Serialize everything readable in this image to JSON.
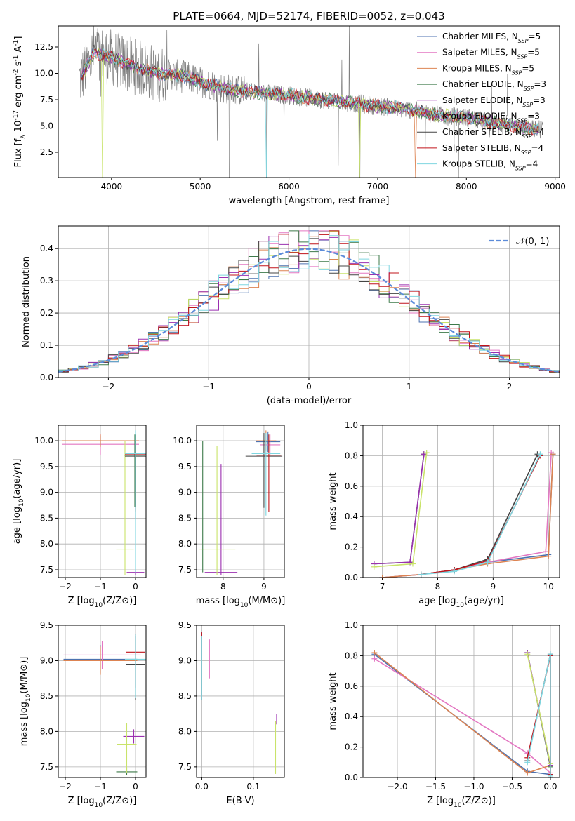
{
  "colors": {
    "chabrier_miles": "#4c72b0",
    "salpeter_miles": "#e377c2",
    "kroupa_miles": "#dd8452",
    "chabrier_elodie": "#3d7a4a",
    "salpeter_elodie": "#9b30b0",
    "kroupa_elodie": "#c9e36a",
    "chabrier_stelib": "#444444",
    "salpeter_stelib": "#c0141b",
    "kroupa_stelib": "#7fd6e0",
    "data": "#808080",
    "normal": "#5b8bd9"
  },
  "chart_data": [
    {
      "id": "spectrum",
      "type": "line",
      "title": "PLATE=0664, MJD=52174, FIBERID=0052, z=0.043",
      "xlabel": "wavelength [Angstrom, rest frame]",
      "ylabel": "Flux [f_λ 10^-17 erg cm^-2 s^-1 A^-1]",
      "xlim": [
        3400,
        9050
      ],
      "ylim": [
        0.1,
        14.5
      ],
      "xticks": [
        4000,
        5000,
        6000,
        7000,
        8000,
        9000
      ],
      "yticks": [
        2.5,
        5.0,
        7.5,
        10.0,
        12.5
      ],
      "ytick_labels": [
        "2.5",
        "5.0",
        "7.5",
        "10.0",
        "12.5"
      ],
      "legend": "top-right",
      "legend_items": [
        {
          "label": "Chabrier MILES, N",
          "sub": "SSP",
          "suffix": "=5",
          "color_key": "chabrier_miles"
        },
        {
          "label": "Salpeter MILES, N",
          "sub": "SSP",
          "suffix": "=5",
          "color_key": "salpeter_miles"
        },
        {
          "label": "Kroupa MILES, N",
          "sub": "SSP",
          "suffix": "=5",
          "color_key": "kroupa_miles"
        },
        {
          "label": "Chabrier ELODIE, N",
          "sub": "SSP",
          "suffix": "=3",
          "color_key": "chabrier_elodie"
        },
        {
          "label": "Salpeter ELODIE, N",
          "sub": "SSP",
          "suffix": "=3",
          "color_key": "salpeter_elodie"
        },
        {
          "label": "Kroupa ELODIE, N",
          "sub": "SSP",
          "suffix": "=3",
          "color_key": "kroupa_elodie"
        },
        {
          "label": "Chabrier STELIB, N",
          "sub": "SSP",
          "suffix": "=4",
          "color_key": "chabrier_stelib"
        },
        {
          "label": "Salpeter STELIB, N",
          "sub": "SSP",
          "suffix": "=4",
          "color_key": "salpeter_stelib"
        },
        {
          "label": "Kroupa STELIB, N",
          "sub": "SSP",
          "suffix": "=4",
          "color_key": "kroupa_stelib"
        }
      ],
      "continuum": {
        "x": [
          3650,
          3800,
          4000,
          4200,
          4500,
          4800,
          5000,
          5300,
          5600,
          6000,
          6500,
          6800,
          7000,
          7400,
          7700,
          8000,
          8400,
          8800
        ],
        "y": [
          9.5,
          12.0,
          11.5,
          10.8,
          10.0,
          9.8,
          9.2,
          8.5,
          8.2,
          7.9,
          7.4,
          7.1,
          6.9,
          6.5,
          6.0,
          5.8,
          5.2,
          4.7
        ]
      }
    },
    {
      "id": "residuals",
      "type": "line",
      "xlabel": "(data-model)/error",
      "ylabel": "Normed distribution",
      "xlim": [
        -2.5,
        2.5
      ],
      "ylim": [
        0,
        0.47
      ],
      "xticks": [
        -2,
        -1,
        0,
        1,
        2
      ],
      "yticks": [
        0.0,
        0.1,
        0.2,
        0.3,
        0.4
      ],
      "ytick_labels": [
        "0.0",
        "0.1",
        "0.2",
        "0.3",
        "0.4"
      ],
      "legend": "top-right",
      "normal_label": "𝒩(0, 1)",
      "bin_width": 0.1
    },
    {
      "id": "age_vs_Z",
      "type": "scatter",
      "xlabel": "Z [log10(Z/Z⊙)]",
      "ylabel": "age [log10(age/yr)]",
      "xlim": [
        -2.2,
        0.3
      ],
      "ylim": [
        7.35,
        10.3
      ],
      "xticks": [
        -2,
        -1,
        0
      ],
      "yticks": [
        7.5,
        8.0,
        8.5,
        9.0,
        9.5,
        10.0
      ],
      "ytick_labels": [
        "7.5",
        "8.0",
        "8.5",
        "9.0",
        "9.5",
        "10.0"
      ]
    },
    {
      "id": "age_vs_mass",
      "type": "scatter",
      "xlabel": "mass [log10(M/M⊙)]",
      "xlim": [
        7.35,
        9.5
      ],
      "ylim": [
        7.35,
        10.3
      ],
      "xticks": [
        8,
        9
      ],
      "yticks": [
        7.5,
        8.0,
        8.5,
        9.0,
        9.5,
        10.0
      ],
      "ytick_labels": [
        "7.5",
        "8.0",
        "8.5",
        "9.0",
        "9.5",
        "10.0"
      ]
    },
    {
      "id": "weight_vs_age",
      "type": "line",
      "xlabel": "age [log10(age/yr)]",
      "ylabel": "mass weight",
      "xlim": [
        6.65,
        10.2
      ],
      "ylim": [
        0,
        1
      ],
      "xticks": [
        7,
        8,
        9,
        10
      ],
      "yticks": [
        0.0,
        0.2,
        0.4,
        0.6,
        0.8,
        1.0
      ],
      "ytick_labels": [
        "0.0",
        "0.2",
        "0.4",
        "0.6",
        "0.8",
        "1.0"
      ]
    },
    {
      "id": "mass_vs_Z",
      "type": "scatter",
      "xlabel": "Z [log10(Z/Z⊙)]",
      "ylabel": "mass [log10(M/M⊙)]",
      "xlim": [
        -2.2,
        0.3
      ],
      "ylim": [
        7.35,
        9.5
      ],
      "xticks": [
        -2,
        -1,
        0
      ],
      "yticks": [
        7.5,
        8.0,
        8.5,
        9.0,
        9.5
      ],
      "ytick_labels": [
        "7.5",
        "8.0",
        "8.5",
        "9.0",
        "9.5"
      ]
    },
    {
      "id": "mass_vs_ebv",
      "type": "scatter",
      "xlabel": "E(B-V)",
      "xlim": [
        -0.01,
        0.16
      ],
      "ylim": [
        7.35,
        9.5
      ],
      "xticks": [
        0.0,
        0.1
      ],
      "xtick_labels": [
        "0.0",
        "0.1"
      ],
      "yticks": [
        7.5,
        8.0,
        8.5,
        9.0,
        9.5
      ],
      "ytick_labels": [
        "7.5",
        "8.0",
        "8.5",
        "9.0",
        "9.5"
      ]
    },
    {
      "id": "weight_vs_Z",
      "type": "line",
      "xlabel": "Z [log10(Z/Z⊙)]",
      "ylabel": "mass weight",
      "xlim": [
        -2.45,
        0.12
      ],
      "ylim": [
        0,
        1
      ],
      "xticks": [
        -2.0,
        -1.5,
        -1.0,
        -0.5,
        0.0
      ],
      "xtick_labels": [
        "−2.0",
        "−1.5",
        "−1.0",
        "−0.5",
        "0.0"
      ],
      "yticks": [
        0.0,
        0.2,
        0.4,
        0.6,
        0.8,
        1.0
      ],
      "ytick_labels": [
        "0.0",
        "0.2",
        "0.4",
        "0.6",
        "0.8",
        "1.0"
      ]
    }
  ]
}
